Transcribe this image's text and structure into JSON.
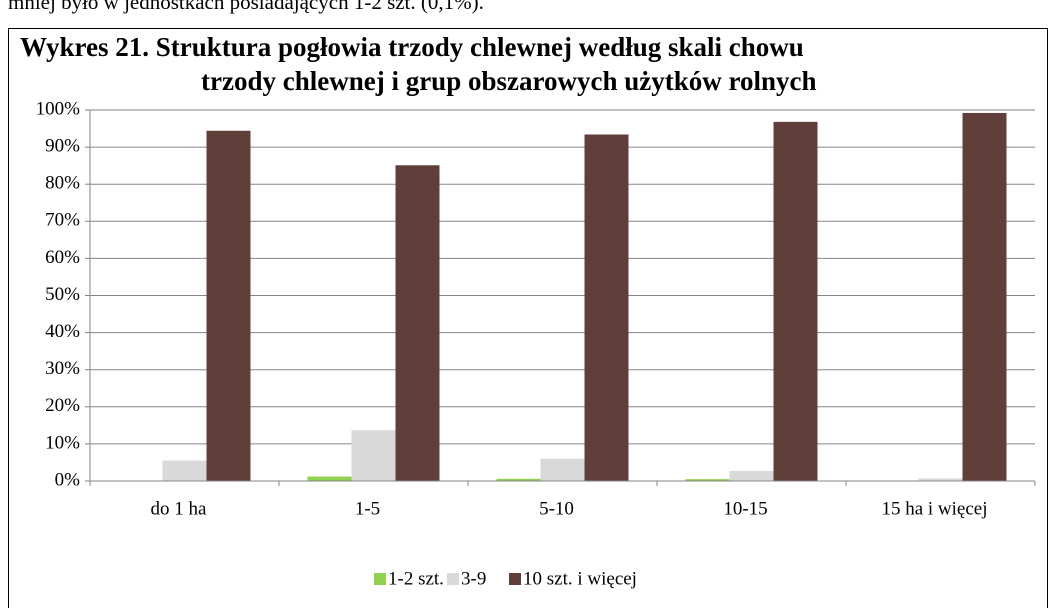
{
  "context_text": "mniej było w jednostkach posiadających 1-2 szt. (0,1%).",
  "chart_data": {
    "type": "bar",
    "title_lines": [
      "Wykres 21.  Struktura pogłowia trzody chlewnej według skali chowu",
      "trzody chlewnej i grup obszarowych użytków rolnych"
    ],
    "categories": [
      "do 1 ha",
      "1-5",
      "5-10",
      "10-15",
      "15 ha i więcej"
    ],
    "series": [
      {
        "name": "1-2 szt.",
        "color": "#92d050",
        "values": [
          0.1,
          1.2,
          0.6,
          0.5,
          0.1
        ]
      },
      {
        "name": "3-9",
        "color": "#d9d9d9",
        "values": [
          5.5,
          13.7,
          6.0,
          2.7,
          0.7
        ]
      },
      {
        "name": "10 szt. i więcej",
        "color": "#603f3a",
        "values": [
          94.4,
          85.1,
          93.4,
          96.8,
          99.2
        ]
      }
    ],
    "ylim": [
      0,
      100
    ],
    "yticks": [
      {
        "value": 0,
        "label": "0%"
      },
      {
        "value": 10,
        "label": "10%"
      },
      {
        "value": 20,
        "label": "20%"
      },
      {
        "value": 30,
        "label": "30%"
      },
      {
        "value": 40,
        "label": "40%"
      },
      {
        "value": 50,
        "label": "50%"
      },
      {
        "value": 60,
        "label": "60%"
      },
      {
        "value": 70,
        "label": "70%"
      },
      {
        "value": 80,
        "label": "80%"
      },
      {
        "value": 90,
        "label": "90%"
      },
      {
        "value": 100,
        "label": "100%"
      }
    ],
    "grid": true,
    "legend": "bottom"
  }
}
